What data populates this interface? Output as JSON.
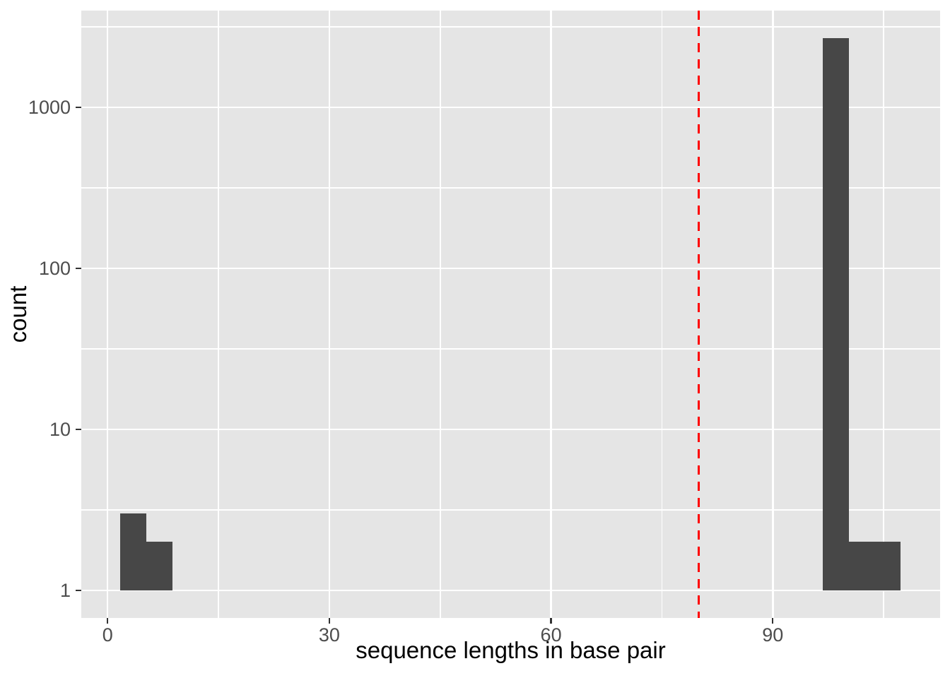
{
  "figure": {
    "background_color": "#FFFFFF",
    "panel_color": "#E5E5E5",
    "gridline_color": "#FFFFFF",
    "bar_color": "#474747",
    "tick_mark_color": "#333333",
    "tick_label_color": "#4D4D4D",
    "axis_title_color": "#000000",
    "vline_color": "#FF0000"
  },
  "chart_data": {
    "type": "bar",
    "subtype": "histogram",
    "title": "",
    "xlabel": "sequence lengths in base pair",
    "ylabel": "count",
    "legend": "none",
    "grid": "on",
    "x_ticks": [
      0,
      30,
      60,
      90
    ],
    "x_tick_labels": [
      "0",
      "30",
      "60",
      "90"
    ],
    "x_minor_gridlines": [
      15,
      45,
      75,
      105
    ],
    "xlim": [
      -3.56,
      112.64
    ],
    "y_scale": "log10",
    "y_ticks": [
      1,
      10,
      100,
      1000
    ],
    "y_tick_labels": [
      "1",
      "10",
      "100",
      "1000"
    ],
    "y_minor_gridlines": [
      3.162,
      31.62,
      316.2,
      3162
    ],
    "ylim_log10": [
      -0.171,
      3.601
    ],
    "bar_base_count": 1,
    "bins": [
      {
        "x_start": 1.7,
        "x_end": 5.2,
        "count": 3
      },
      {
        "x_start": 5.2,
        "x_end": 8.8,
        "count": 2
      },
      {
        "x_start": 96.8,
        "x_end": 100.3,
        "count": 2700
      },
      {
        "x_start": 100.3,
        "x_end": 103.8,
        "count": 2
      },
      {
        "x_start": 103.8,
        "x_end": 107.3,
        "count": 2
      }
    ],
    "vline": {
      "x": 80,
      "color": "#FF0000",
      "style": "dashed"
    }
  }
}
